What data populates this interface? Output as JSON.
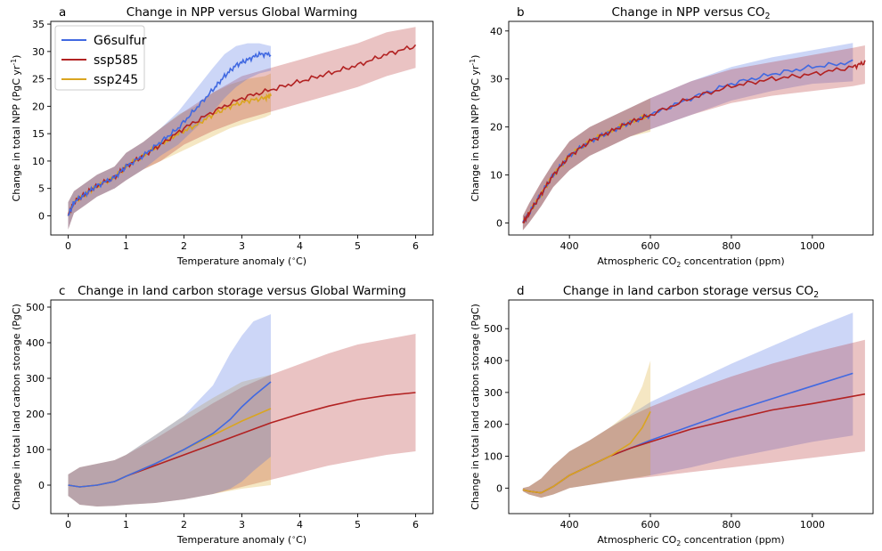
{
  "colors": {
    "G6sulfur": "#4169e1",
    "ssp585": "#b22222",
    "ssp245": "#daa520"
  },
  "legend": {
    "entries": [
      "G6sulfur",
      "ssp585",
      "ssp245"
    ],
    "placement": "upper-left of panel a"
  },
  "chart_data": [
    {
      "type": "line",
      "panel": "a",
      "title": "Change in NPP versus Global Warming",
      "xlabel": "Temperature anomaly ($^\\circ$C)",
      "ylabel": "Change in total NPP (PgC yr$^{-1}$)",
      "xlim": [
        -0.3,
        6.3
      ],
      "ylim": [
        -3.5,
        35.5
      ],
      "xticks": [
        0,
        1,
        2,
        3,
        4,
        5,
        6
      ],
      "yticks": [
        0,
        5,
        10,
        15,
        20,
        25,
        30,
        35
      ],
      "series": [
        {
          "name": "ssp245",
          "x": [
            0,
            0.1,
            0.3,
            0.5,
            0.8,
            1.0,
            1.3,
            1.6,
            1.9,
            2.2,
            2.5,
            2.8,
            3.1,
            3.4,
            3.5
          ],
          "y": [
            0,
            2.5,
            4,
            5.5,
            7,
            9,
            11,
            13,
            15,
            16.5,
            18.5,
            20,
            21,
            21.5,
            22
          ],
          "lower": [
            -2.5,
            0.5,
            2,
            3.5,
            5,
            6.5,
            8.5,
            10,
            11.5,
            13,
            14.5,
            16,
            17,
            18,
            18.5
          ],
          "upper": [
            2.5,
            4.5,
            6,
            7.5,
            9,
            11.5,
            13.5,
            16,
            18.5,
            20,
            22.5,
            24,
            25,
            25.5,
            26
          ]
        },
        {
          "name": "ssp585",
          "x": [
            0,
            0.1,
            0.3,
            0.5,
            0.8,
            1.0,
            1.3,
            1.6,
            2.0,
            2.5,
            3.0,
            3.5,
            4.0,
            4.5,
            5.0,
            5.5,
            6.0
          ],
          "y": [
            0,
            2.5,
            4,
            5.5,
            7,
            9,
            11,
            13,
            16,
            19,
            21.5,
            23,
            24.5,
            26,
            27.5,
            29.5,
            31
          ],
          "lower": [
            -2.5,
            0.5,
            2,
            3.5,
            5,
            6.5,
            8.5,
            10,
            13,
            15.5,
            17.5,
            19,
            20.5,
            22,
            23.5,
            25.5,
            27
          ],
          "upper": [
            2.5,
            4.5,
            6,
            7.5,
            9,
            11.5,
            13.5,
            16,
            19,
            22.5,
            25.5,
            27,
            28.5,
            30,
            31.5,
            33.5,
            34.5
          ]
        },
        {
          "name": "G6sulfur",
          "x": [
            0,
            0.1,
            0.3,
            0.5,
            0.8,
            1.0,
            1.3,
            1.6,
            1.9,
            2.2,
            2.5,
            2.7,
            2.9,
            3.1,
            3.3,
            3.5
          ],
          "y": [
            0,
            2.5,
            4,
            5.5,
            7,
            9,
            11,
            13.5,
            16,
            19.5,
            23,
            25.5,
            27.5,
            28.5,
            29.5,
            29.5
          ],
          "lower": [
            -2.5,
            0.5,
            2,
            3.5,
            5,
            6.5,
            8.5,
            11,
            13,
            16,
            19,
            21.5,
            23.5,
            25,
            26,
            26.5
          ],
          "upper": [
            2.5,
            4.5,
            6,
            7.5,
            9,
            11.5,
            13.5,
            16,
            19,
            23,
            27,
            29.5,
            31,
            31.5,
            31.5,
            31
          ]
        }
      ]
    },
    {
      "type": "line",
      "panel": "b",
      "title": "Change in NPP versus CO$_2$",
      "xlabel": "Atmospheric CO$_2$ concentration (ppm)",
      "ylabel": "Change in total NPP (PgC yr$^{-1}$)",
      "xlim": [
        250,
        1150
      ],
      "ylim": [
        -2.5,
        42
      ],
      "xticks": [
        400,
        600,
        800,
        1000
      ],
      "yticks": [
        0,
        10,
        20,
        30,
        40
      ],
      "series": [
        {
          "name": "ssp245",
          "x": [
            285,
            300,
            330,
            360,
            400,
            450,
            500,
            550,
            600
          ],
          "y": [
            0,
            2,
            6,
            10,
            14,
            17,
            19,
            21,
            22.5
          ],
          "lower": [
            -1.5,
            0,
            3.5,
            7.5,
            11,
            14,
            16,
            18,
            19
          ],
          "upper": [
            1.5,
            4,
            8.5,
            12.5,
            17,
            20,
            22,
            24,
            26
          ]
        },
        {
          "name": "G6sulfur",
          "x": [
            285,
            300,
            330,
            360,
            400,
            450,
            500,
            550,
            600,
            700,
            800,
            900,
            1000,
            1100
          ],
          "y": [
            0,
            2,
            6,
            10,
            14,
            17,
            19,
            21,
            22.5,
            26,
            29,
            31,
            32.5,
            33.5
          ],
          "lower": [
            -1.5,
            0,
            3.5,
            7.5,
            11,
            14,
            16,
            18,
            19.5,
            22.5,
            25.5,
            27.5,
            29,
            29.5
          ],
          "upper": [
            1.5,
            4,
            8.5,
            12.5,
            17,
            20,
            22,
            24,
            26,
            29.5,
            32.5,
            34.5,
            36,
            37.5
          ]
        },
        {
          "name": "ssp585",
          "x": [
            285,
            300,
            330,
            360,
            400,
            450,
            500,
            550,
            600,
            700,
            800,
            900,
            1000,
            1100,
            1130
          ],
          "y": [
            0,
            2,
            6,
            10,
            14,
            17,
            19,
            21,
            22.5,
            26,
            28.5,
            30,
            31,
            32.5,
            33.5
          ],
          "lower": [
            -1.5,
            0,
            3.5,
            7.5,
            11,
            14,
            16,
            18,
            19.5,
            22.5,
            25,
            26.5,
            27.5,
            28.5,
            29
          ],
          "upper": [
            1.5,
            4,
            8.5,
            12.5,
            17,
            20,
            22,
            24,
            26,
            29.5,
            32,
            33.5,
            35,
            36.5,
            37
          ]
        }
      ]
    },
    {
      "type": "line",
      "panel": "c",
      "title": "Change in land carbon storage versus Global Warming",
      "xlabel": "Temperature anomaly ($^\\circ$C)",
      "ylabel": "Change in total land carbon storage (PgC)",
      "xlim": [
        -0.3,
        6.3
      ],
      "ylim": [
        -80,
        520
      ],
      "xticks": [
        0,
        1,
        2,
        3,
        4,
        5,
        6
      ],
      "yticks": [
        0,
        100,
        200,
        300,
        400,
        500
      ],
      "series": [
        {
          "name": "ssp585",
          "x": [
            0,
            0.2,
            0.5,
            0.8,
            1.0,
            1.5,
            2.0,
            2.5,
            3.0,
            3.5,
            4.0,
            4.5,
            5.0,
            5.5,
            6.0
          ],
          "y": [
            0,
            -5,
            0,
            10,
            25,
            55,
            85,
            115,
            145,
            175,
            200,
            222,
            240,
            252,
            260
          ],
          "lower": [
            -30,
            -55,
            -60,
            -58,
            -55,
            -50,
            -40,
            -25,
            -5,
            15,
            35,
            55,
            70,
            85,
            95
          ],
          "upper": [
            30,
            50,
            60,
            70,
            85,
            130,
            180,
            230,
            275,
            310,
            340,
            370,
            395,
            410,
            425
          ]
        },
        {
          "name": "ssp245",
          "x": [
            0,
            0.2,
            0.5,
            0.8,
            1.0,
            1.5,
            2.0,
            2.5,
            3.0,
            3.5
          ],
          "y": [
            0,
            -5,
            0,
            10,
            25,
            60,
            100,
            140,
            180,
            215
          ],
          "lower": [
            -30,
            -55,
            -60,
            -58,
            -55,
            -50,
            -40,
            -25,
            -10,
            0
          ],
          "upper": [
            30,
            50,
            60,
            70,
            85,
            140,
            195,
            245,
            290,
            310
          ]
        },
        {
          "name": "G6sulfur",
          "x": [
            0,
            0.2,
            0.5,
            0.8,
            1.0,
            1.5,
            2.0,
            2.5,
            2.8,
            3.0,
            3.2,
            3.5
          ],
          "y": [
            0,
            -5,
            0,
            10,
            25,
            60,
            100,
            145,
            185,
            220,
            250,
            290
          ],
          "lower": [
            -30,
            -55,
            -60,
            -58,
            -55,
            -50,
            -40,
            -25,
            -10,
            10,
            40,
            80
          ],
          "upper": [
            30,
            50,
            60,
            70,
            85,
            140,
            195,
            280,
            370,
            420,
            460,
            480
          ]
        }
      ]
    },
    {
      "type": "line",
      "panel": "d",
      "title": "Change in land carbon storage versus CO$_2$",
      "xlabel": "Atmospheric CO$_2$ concentration (ppm)",
      "ylabel": "Change in total land carbon storage (PgC)",
      "xlim": [
        250,
        1150
      ],
      "ylim": [
        -80,
        590
      ],
      "xticks": [
        400,
        600,
        800,
        1000
      ],
      "yticks": [
        0,
        100,
        200,
        300,
        400,
        500
      ],
      "series": [
        {
          "name": "G6sulfur",
          "x": [
            285,
            300,
            330,
            360,
            400,
            450,
            500,
            550,
            600,
            700,
            800,
            900,
            1000,
            1100
          ],
          "y": [
            -5,
            -10,
            -15,
            5,
            40,
            70,
            100,
            125,
            150,
            195,
            240,
            280,
            320,
            360
          ],
          "lower": [
            -10,
            -20,
            -30,
            -20,
            0,
            10,
            20,
            30,
            40,
            65,
            95,
            120,
            145,
            165
          ],
          "upper": [
            0,
            5,
            30,
            70,
            115,
            150,
            190,
            230,
            270,
            330,
            390,
            445,
            500,
            550
          ]
        },
        {
          "name": "ssp585",
          "x": [
            285,
            300,
            330,
            360,
            400,
            450,
            500,
            550,
            600,
            700,
            800,
            900,
            1000,
            1130
          ],
          "y": [
            -5,
            -10,
            -15,
            5,
            40,
            70,
            100,
            125,
            145,
            185,
            215,
            245,
            265,
            295
          ],
          "lower": [
            -10,
            -20,
            -30,
            -20,
            0,
            10,
            20,
            28,
            35,
            50,
            65,
            80,
            95,
            115
          ],
          "upper": [
            0,
            5,
            30,
            70,
            115,
            150,
            190,
            225,
            255,
            305,
            350,
            390,
            425,
            465
          ]
        },
        {
          "name": "ssp245",
          "x": [
            285,
            300,
            330,
            360,
            400,
            450,
            500,
            550,
            580,
            600
          ],
          "y": [
            -5,
            -10,
            -15,
            5,
            40,
            70,
            100,
            140,
            190,
            240
          ],
          "lower": [
            -10,
            -20,
            -30,
            -20,
            0,
            10,
            20,
            30,
            35,
            40
          ],
          "upper": [
            0,
            5,
            30,
            70,
            115,
            150,
            190,
            240,
            320,
            400
          ]
        }
      ]
    }
  ]
}
